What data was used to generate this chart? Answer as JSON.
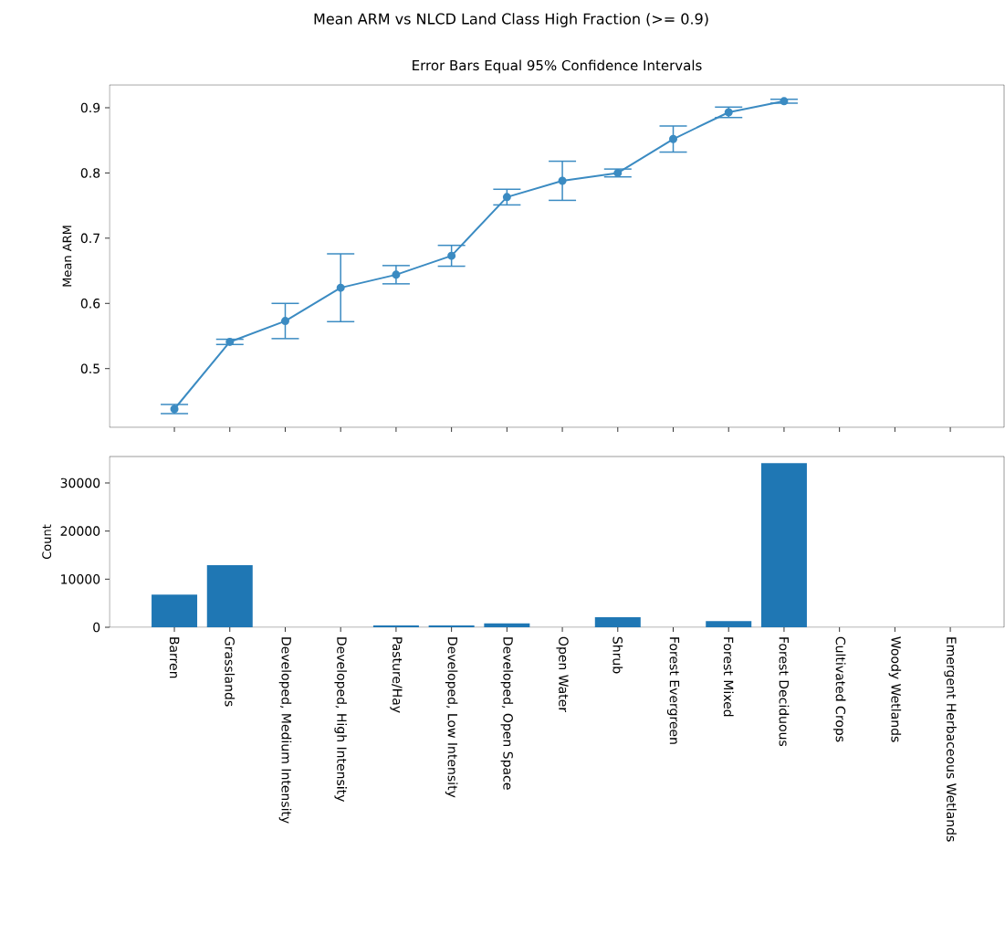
{
  "chart_data": [
    {
      "type": "line",
      "title": "Mean ARM vs NLCD Land Class High Fraction (>= 0.9)",
      "subtitle": "Error Bars Equal 95% Confidence Intervals",
      "ylabel": "Mean ARM",
      "categories": [
        null,
        null,
        null,
        null,
        null,
        null,
        null,
        null,
        null,
        null,
        null,
        null,
        null,
        null,
        null
      ],
      "values": [
        0.438,
        0.541,
        0.573,
        0.624,
        0.644,
        0.673,
        0.763,
        0.788,
        0.8,
        0.852,
        0.893,
        0.91,
        null,
        null,
        null
      ],
      "errors": [
        0.007,
        0.004,
        0.027,
        0.052,
        0.014,
        0.016,
        0.012,
        0.03,
        0.006,
        0.02,
        0.008,
        0.003,
        null,
        null,
        null
      ],
      "color": "#3b8bc2",
      "marker": "circle",
      "line_style": "solid",
      "ylim": [
        0.41,
        0.935
      ],
      "yticks": [
        0.5,
        0.6,
        0.7,
        0.8,
        0.9
      ],
      "tick_labels": "y",
      "grid": false
    },
    {
      "type": "bar",
      "ylabel": "Count",
      "categories": [
        "Barren",
        "Grasslands",
        "Developed, Medium Intensity",
        "Developed, High Intensity",
        "Pasture/Hay",
        "Developed, Low Intensity",
        "Developed, Open Space",
        "Open Water",
        "Shrub",
        "Forest Evergreen",
        "Forest Mixed",
        "Forest Deciduous",
        "Cultivated Crops",
        "Woody Wetlands",
        "Emergent Herbaceous Wetlands"
      ],
      "values": [
        6800,
        12900,
        0,
        0,
        400,
        400,
        800,
        0,
        2100,
        0,
        1300,
        34100,
        0,
        0,
        0
      ],
      "color": "#1f77b4",
      "ylim": [
        0,
        35500
      ],
      "yticks": [
        0,
        10000,
        20000,
        30000
      ],
      "grid": false
    }
  ]
}
